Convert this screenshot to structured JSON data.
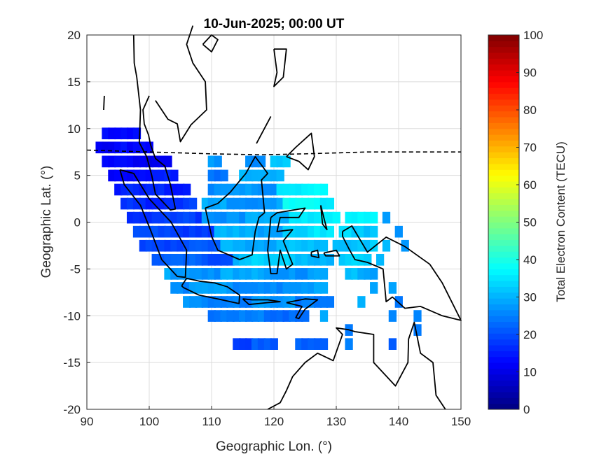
{
  "chart_data": {
    "type": "heatmap",
    "title": "10-Jun-2025; 00:00 UT",
    "xlabel": "Geographic Lon. (°)",
    "ylabel": "Geographic Lat. (°)",
    "xlim": [
      90,
      150
    ],
    "ylim": [
      -20,
      20
    ],
    "xticks": [
      "90",
      "100",
      "110",
      "120",
      "130",
      "140",
      "150"
    ],
    "yticks": [
      "20",
      "15",
      "10",
      "5",
      "0",
      "-5",
      "-10",
      "-15",
      "-20"
    ],
    "grid": true,
    "colorbar": {
      "label": "Total Electron Content (TECU)",
      "range": [
        0,
        100
      ],
      "ticks": [
        "100",
        "90",
        "80",
        "70",
        "60",
        "50",
        "40",
        "30",
        "20",
        "10",
        "0"
      ],
      "colormap": "jet"
    },
    "overlays": [
      "coastlines",
      "magnetic equator (dashed)"
    ],
    "cell_size_deg": [
      1.2,
      1.2
    ],
    "rows": [
      {
        "lat": 9.5,
        "lon_from": 93,
        "lon_to": 98,
        "tec": 14
      },
      {
        "lat": 8,
        "lon_from": 92,
        "lon_to": 100,
        "tec": 12
      },
      {
        "lat": 6.5,
        "lon_from": 93,
        "lon_to": 103,
        "tec": 12
      },
      {
        "lat": 6.5,
        "lon_from": 110,
        "lon_to": 111,
        "tec": 26
      },
      {
        "lat": 6.5,
        "lon_from": 116,
        "lon_to": 118,
        "tec": 28
      },
      {
        "lat": 6.5,
        "lon_from": 120,
        "lon_to": 122,
        "tec": 31
      },
      {
        "lat": 5,
        "lon_from": 94,
        "lon_to": 104,
        "tec": 14
      },
      {
        "lat": 5,
        "lon_from": 110,
        "lon_to": 112,
        "tec": 25
      },
      {
        "lat": 5,
        "lon_from": 115,
        "lon_to": 121,
        "tec": 29
      },
      {
        "lat": 3.5,
        "lon_from": 95,
        "lon_to": 106,
        "tec": 15
      },
      {
        "lat": 3.5,
        "lon_from": 110,
        "lon_to": 120,
        "tec": 27
      },
      {
        "lat": 3.5,
        "lon_from": 121,
        "lon_to": 128,
        "tec": 36
      },
      {
        "lat": 2,
        "lon_from": 96,
        "lon_to": 107,
        "tec": 17
      },
      {
        "lat": 2,
        "lon_from": 109,
        "lon_to": 121,
        "tec": 28
      },
      {
        "lat": 2,
        "lon_from": 122,
        "lon_to": 129,
        "tec": 37
      },
      {
        "lat": 0.5,
        "lon_from": 97,
        "lon_to": 108,
        "tec": 18
      },
      {
        "lat": 0.5,
        "lon_from": 109,
        "lon_to": 122,
        "tec": 28
      },
      {
        "lat": 0.5,
        "lon_from": 123,
        "lon_to": 130,
        "tec": 37
      },
      {
        "lat": 0.5,
        "lon_from": 132,
        "lon_to": 136,
        "tec": 35
      },
      {
        "lat": 0.5,
        "lon_from": 138,
        "lon_to": 138,
        "tec": 28
      },
      {
        "lat": -1,
        "lon_from": 98,
        "lon_to": 110,
        "tec": 19
      },
      {
        "lat": -1,
        "lon_from": 111,
        "lon_to": 121,
        "tec": 29
      },
      {
        "lat": -1,
        "lon_from": 122,
        "lon_to": 129,
        "tec": 34
      },
      {
        "lat": -1,
        "lon_from": 131,
        "lon_to": 136,
        "tec": 33
      },
      {
        "lat": -1,
        "lon_from": 140,
        "lon_to": 140,
        "tec": 28
      },
      {
        "lat": -2.5,
        "lon_from": 99,
        "lon_to": 111,
        "tec": 20
      },
      {
        "lat": -2.5,
        "lon_from": 112,
        "lon_to": 128,
        "tec": 30
      },
      {
        "lat": -2.5,
        "lon_from": 130,
        "lon_to": 136,
        "tec": 33
      },
      {
        "lat": -2.5,
        "lon_from": 138,
        "lon_to": 138,
        "tec": 30
      },
      {
        "lat": -2.5,
        "lon_from": 141,
        "lon_to": 141,
        "tec": 26
      },
      {
        "lat": -4,
        "lon_from": 101,
        "lon_to": 113,
        "tec": 21
      },
      {
        "lat": -4,
        "lon_from": 114,
        "lon_to": 129,
        "tec": 32
      },
      {
        "lat": -4,
        "lon_from": 131,
        "lon_to": 135,
        "tec": 32
      },
      {
        "lat": -4,
        "lon_from": 137,
        "lon_to": 137,
        "tec": 30
      },
      {
        "lat": -5.5,
        "lon_from": 103,
        "lon_to": 128,
        "tec": 28
      },
      {
        "lat": -5.5,
        "lon_from": 132,
        "lon_to": 136,
        "tec": 30
      },
      {
        "lat": -7,
        "lon_from": 104,
        "lon_to": 128,
        "tec": 27
      },
      {
        "lat": -7,
        "lon_from": 136,
        "lon_to": 136,
        "tec": 28
      },
      {
        "lat": -7,
        "lon_from": 139,
        "lon_to": 139,
        "tec": 28
      },
      {
        "lat": -8.5,
        "lon_from": 106,
        "lon_to": 129,
        "tec": 26
      },
      {
        "lat": -8.5,
        "lon_from": 134,
        "lon_to": 134,
        "tec": 28
      },
      {
        "lat": -8.5,
        "lon_from": 140,
        "lon_to": 140,
        "tec": 26
      },
      {
        "lat": -10,
        "lon_from": 110,
        "lon_to": 125,
        "tec": 24
      },
      {
        "lat": -10,
        "lon_from": 128,
        "lon_to": 128,
        "tec": 27
      },
      {
        "lat": -10,
        "lon_from": 139,
        "lon_to": 139,
        "tec": 28
      },
      {
        "lat": -10,
        "lon_from": 143,
        "lon_to": 143,
        "tec": 24
      },
      {
        "lat": -11.5,
        "lon_from": 132,
        "lon_to": 132,
        "tec": 26
      },
      {
        "lat": -11.5,
        "lon_from": 143,
        "lon_to": 143,
        "tec": 24
      },
      {
        "lat": -13,
        "lon_from": 114,
        "lon_to": 120,
        "tec": 20
      },
      {
        "lat": -13,
        "lon_from": 124,
        "lon_to": 128,
        "tec": 22
      },
      {
        "lat": -13,
        "lon_from": 132,
        "lon_to": 132,
        "tec": 24
      },
      {
        "lat": -13,
        "lon_from": 139,
        "lon_to": 139,
        "tec": 22
      }
    ]
  }
}
